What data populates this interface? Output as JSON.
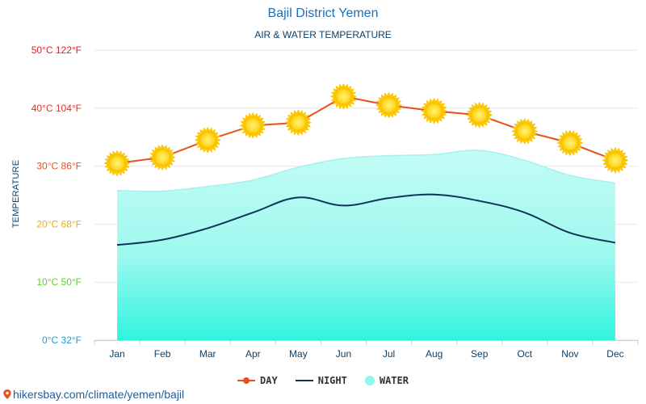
{
  "title": "Bajil District Yemen",
  "subtitle": "AIR & WATER TEMPERATURE",
  "credit": "hikersbay.com/climate/yemen/bajil",
  "colors": {
    "day": "#e8501c",
    "night": "#0d3559",
    "water_top": "#b9fbf5",
    "water_bottom": "#36f5e2",
    "sun": "#ffd21f"
  },
  "chart_data": {
    "type": "line",
    "title": "Bajil District Yemen",
    "subtitle": "AIR & WATER TEMPERATURE",
    "ylabel": "TEMPERATURE",
    "xlabel": "",
    "categories": [
      "Jan",
      "Feb",
      "Mar",
      "Apr",
      "May",
      "Jun",
      "Jul",
      "Aug",
      "Sep",
      "Oct",
      "Nov",
      "Dec"
    ],
    "ylim": [
      0,
      50
    ],
    "yticks": [
      {
        "value": 0,
        "label": "0°C 32°F",
        "color": "#1a9fd6"
      },
      {
        "value": 10,
        "label": "10°C 50°F",
        "color": "#5ad61a"
      },
      {
        "value": 20,
        "label": "20°C 68°F",
        "color": "#e3b41a"
      },
      {
        "value": 30,
        "label": "30°C 86°F",
        "color": "#e8501c"
      },
      {
        "value": 40,
        "label": "40°C 104°F",
        "color": "#e8301c"
      },
      {
        "value": 50,
        "label": "50°C 122°F",
        "color": "#e0201c"
      }
    ],
    "grid": true,
    "legend_position": "bottom",
    "series": [
      {
        "name": "DAY",
        "values": [
          30.5,
          31.5,
          34.5,
          37,
          37.5,
          42,
          40.5,
          39.5,
          38.8,
          36,
          34,
          31
        ]
      },
      {
        "name": "NIGHT",
        "values": [
          16.4,
          17.3,
          19.3,
          22,
          24.6,
          23.2,
          24.5,
          25.1,
          24,
          22,
          18.5,
          16.8
        ]
      },
      {
        "name": "WATER",
        "values": [
          25.8,
          25.7,
          26.5,
          27.6,
          29.8,
          31.3,
          31.8,
          32.0,
          32.7,
          31.0,
          28.4,
          27.1
        ]
      }
    ]
  },
  "legend": [
    {
      "key": "day",
      "label": "DAY"
    },
    {
      "key": "night",
      "label": "NIGHT"
    },
    {
      "key": "water",
      "label": "WATER"
    }
  ]
}
